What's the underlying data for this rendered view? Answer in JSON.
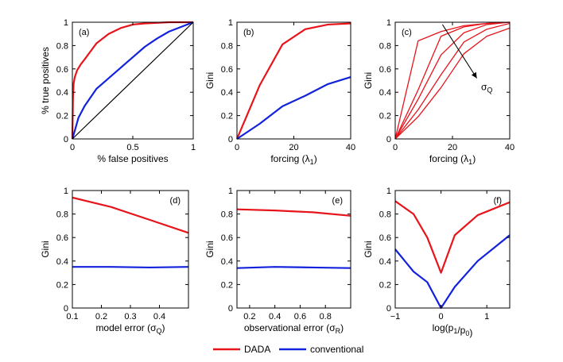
{
  "colors": {
    "dada": "#e8141b",
    "conventional": "#1222dc",
    "diagonal": "#000000"
  },
  "legend": {
    "items": [
      {
        "label": "DADA",
        "color": "#e8141b"
      },
      {
        "label": "conventional",
        "color": "#1222dc"
      }
    ]
  },
  "chart_data": [
    {
      "type": "line",
      "panel_label": "(a)",
      "xlabel": "% false positives",
      "ylabel": "% true positives",
      "xlim": [
        0,
        1
      ],
      "ylim": [
        0,
        1
      ],
      "xticks": [
        0,
        0.5,
        1
      ],
      "xtick_labels": [
        "0",
        "0.5",
        "1"
      ],
      "yticks": [
        0,
        0.2,
        0.4,
        0.6,
        0.8,
        1
      ],
      "ytick_labels": [
        "0",
        "0.2",
        "0.4",
        "0.6",
        "0.8",
        "1"
      ],
      "series": [
        {
          "name": "DADA",
          "color": "#e8141b",
          "x": [
            0,
            0.005,
            0.01,
            0.02,
            0.04,
            0.07,
            0.1,
            0.15,
            0.2,
            0.3,
            0.4,
            0.5,
            0.6,
            0.8,
            1
          ],
          "y": [
            0,
            0.35,
            0.47,
            0.53,
            0.59,
            0.64,
            0.68,
            0.75,
            0.82,
            0.9,
            0.95,
            0.98,
            0.99,
            1,
            1
          ]
        },
        {
          "name": "conventional",
          "color": "#1222dc",
          "x": [
            0,
            0.02,
            0.05,
            0.1,
            0.2,
            0.3,
            0.4,
            0.5,
            0.6,
            0.7,
            0.8,
            0.9,
            1
          ],
          "y": [
            0,
            0.07,
            0.18,
            0.28,
            0.43,
            0.52,
            0.61,
            0.7,
            0.79,
            0.86,
            0.92,
            0.96,
            1
          ]
        },
        {
          "name": "diagonal",
          "color": "#000000",
          "x": [
            0,
            1
          ],
          "y": [
            0,
            1
          ]
        }
      ]
    },
    {
      "type": "line",
      "panel_label": "(b)",
      "xlabel": "forcing (λ",
      "xlabel_sub": "1",
      "xlabel_end": ")",
      "ylabel": "Gini",
      "xlim": [
        0,
        40
      ],
      "ylim": [
        0,
        1
      ],
      "xticks": [
        0,
        20,
        40
      ],
      "xtick_labels": [
        "0",
        "20",
        "40"
      ],
      "yticks": [
        0,
        0.2,
        0.4,
        0.6,
        0.8,
        1
      ],
      "ytick_labels": [
        "0",
        "0.2",
        "0.4",
        "0.6",
        "0.8",
        "1"
      ],
      "series": [
        {
          "name": "DADA",
          "color": "#e8141b",
          "x": [
            0,
            8,
            16,
            24,
            32,
            40
          ],
          "y": [
            0,
            0.46,
            0.81,
            0.94,
            0.98,
            0.99
          ]
        },
        {
          "name": "conventional",
          "color": "#1222dc",
          "x": [
            0,
            8,
            16,
            24,
            32,
            40
          ],
          "y": [
            0,
            0.13,
            0.28,
            0.37,
            0.47,
            0.53
          ]
        }
      ]
    },
    {
      "type": "line",
      "panel_label": "(c)",
      "xlabel": "forcing (λ",
      "xlabel_sub": "1",
      "xlabel_end": ")",
      "ylabel": "Gini",
      "xlim": [
        0,
        40
      ],
      "ylim": [
        0,
        1
      ],
      "xticks": [
        0,
        20,
        40
      ],
      "xtick_labels": [
        "0",
        "20",
        "40"
      ],
      "yticks": [
        0,
        0.2,
        0.4,
        0.6,
        0.8,
        1
      ],
      "ytick_labels": [
        "0",
        "0.2",
        "0.4",
        "0.6",
        "0.8",
        "1"
      ],
      "annotation": {
        "text": "σ",
        "sub": "Q"
      },
      "series": [
        {
          "name": "DADA σQ1",
          "color": "#e8141b",
          "x": [
            0,
            8,
            16,
            24,
            32,
            40
          ],
          "y": [
            0,
            0.84,
            0.92,
            0.97,
            0.99,
            1
          ]
        },
        {
          "name": "DADA σQ2",
          "color": "#e8141b",
          "x": [
            0,
            8,
            16,
            24,
            32,
            40
          ],
          "y": [
            0,
            0.42,
            0.88,
            0.96,
            0.99,
            1
          ]
        },
        {
          "name": "DADA σQ3",
          "color": "#e8141b",
          "x": [
            0,
            8,
            16,
            24,
            32,
            40
          ],
          "y": [
            0,
            0.34,
            0.72,
            0.91,
            0.98,
            1
          ]
        },
        {
          "name": "DADA σQ4",
          "color": "#e8141b",
          "x": [
            0,
            8,
            16,
            24,
            32,
            40
          ],
          "y": [
            0,
            0.25,
            0.55,
            0.83,
            0.94,
            0.99
          ]
        },
        {
          "name": "DADA σQ5",
          "color": "#e8141b",
          "x": [
            0,
            8,
            16,
            24,
            32,
            40
          ],
          "y": [
            0,
            0.19,
            0.44,
            0.73,
            0.88,
            0.95
          ]
        }
      ]
    },
    {
      "type": "line",
      "panel_label": "(d)",
      "xlabel": "model error (σ",
      "xlabel_sub": "Q",
      "xlabel_end": ")",
      "ylabel": "Gini",
      "xlim": [
        0.1,
        0.5
      ],
      "ylim": [
        0,
        1
      ],
      "xticks": [
        0.1,
        0.2,
        0.3,
        0.4
      ],
      "xtick_labels": [
        "0.1",
        "0.2",
        "0.3",
        "0.4"
      ],
      "yticks": [
        0,
        0.2,
        0.4,
        0.6,
        0.8,
        1
      ],
      "ytick_labels": [
        "0",
        "0.2",
        "0.4",
        "0.6",
        "0.8",
        "1"
      ],
      "series": [
        {
          "name": "DADA",
          "color": "#e8141b",
          "x": [
            0.1,
            0.233,
            0.367,
            0.5
          ],
          "y": [
            0.94,
            0.86,
            0.75,
            0.64
          ]
        },
        {
          "name": "conventional",
          "color": "#1222dc",
          "x": [
            0.1,
            0.233,
            0.367,
            0.5
          ],
          "y": [
            0.35,
            0.35,
            0.345,
            0.35
          ]
        }
      ]
    },
    {
      "type": "line",
      "panel_label": "(e)",
      "xlabel": "observational error (σ",
      "xlabel_sub": "R",
      "xlabel_end": ")",
      "ylabel": "Gini",
      "xlim": [
        0.1,
        1.0
      ],
      "ylim": [
        0,
        1
      ],
      "xticks": [
        0.2,
        0.4,
        0.6,
        0.8
      ],
      "xtick_labels": [
        "0.2",
        "0.4",
        "0.6",
        "0.8"
      ],
      "yticks": [
        0,
        0.2,
        0.4,
        0.6,
        0.8,
        1
      ],
      "ytick_labels": [
        "0",
        "0.2",
        "0.4",
        "0.6",
        "0.8",
        "1"
      ],
      "series": [
        {
          "name": "DADA",
          "color": "#e8141b",
          "x": [
            0.1,
            0.4,
            0.7,
            1.0
          ],
          "y": [
            0.84,
            0.83,
            0.815,
            0.785
          ]
        },
        {
          "name": "conventional",
          "color": "#1222dc",
          "x": [
            0.1,
            0.4,
            0.7,
            1.0
          ],
          "y": [
            0.34,
            0.35,
            0.345,
            0.34
          ]
        }
      ]
    },
    {
      "type": "line",
      "panel_label": "(f)",
      "xlabel": "log(p",
      "xlabel_parts": [
        {
          "t": "log(p"
        },
        {
          "t": "1",
          "sub": true
        },
        {
          "t": "/p"
        },
        {
          "t": "0",
          "sub": true
        },
        {
          "t": ")"
        }
      ],
      "ylabel": "Gini",
      "xlim": [
        -1,
        1.5
      ],
      "ylim": [
        0,
        1
      ],
      "xticks": [
        -1,
        0,
        1
      ],
      "xtick_labels": [
        "−1",
        "0",
        "1"
      ],
      "yticks": [
        0,
        0.2,
        0.4,
        0.6,
        0.8,
        1
      ],
      "ytick_labels": [
        "0",
        "0.2",
        "0.4",
        "0.6",
        "0.8",
        "1"
      ],
      "series": [
        {
          "name": "DADA",
          "color": "#e8141b",
          "x": [
            -1,
            -0.6,
            -0.3,
            0,
            0.3,
            0.8,
            1.5
          ],
          "y": [
            0.91,
            0.8,
            0.6,
            0.3,
            0.62,
            0.79,
            0.9
          ]
        },
        {
          "name": "conventional",
          "color": "#1222dc",
          "x": [
            -1,
            -0.6,
            -0.3,
            0,
            0.3,
            0.8,
            1.5
          ],
          "y": [
            0.5,
            0.31,
            0.22,
            0,
            0.18,
            0.4,
            0.62
          ]
        }
      ]
    }
  ]
}
